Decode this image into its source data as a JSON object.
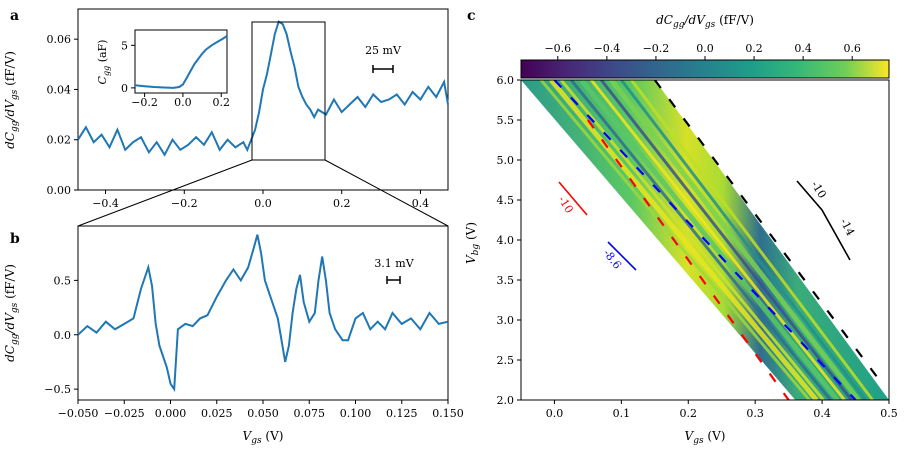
{
  "chart_data": [
    {
      "panel": "a",
      "type": "line",
      "xlabel": "",
      "ylabel": "dC_gg/dV_gs (fF/V)",
      "xlim": [
        -0.47,
        0.47
      ],
      "ylim": [
        0.0,
        0.072
      ],
      "xticks": [
        -0.4,
        -0.2,
        0.0,
        0.2,
        0.4
      ],
      "xtick_labels": [
        "−0.4",
        "−0.2",
        "0.0",
        "0.2",
        "0.4"
      ],
      "yticks": [
        0.0,
        0.02,
        0.04,
        0.06
      ],
      "ytick_labels": [
        "0.00",
        "0.02",
        "0.04",
        "0.06"
      ],
      "scale_bar_label": "25 mV",
      "line_color": "#1f77b4",
      "series": [
        {
          "x": [
            -0.47,
            -0.45,
            -0.43,
            -0.41,
            -0.39,
            -0.37,
            -0.35,
            -0.33,
            -0.31,
            -0.29,
            -0.27,
            -0.25,
            -0.23,
            -0.21,
            -0.19,
            -0.17,
            -0.15,
            -0.13,
            -0.11,
            -0.09,
            -0.07,
            -0.05,
            -0.04,
            -0.03,
            -0.02,
            -0.01,
            0.0,
            0.01,
            0.02,
            0.03,
            0.04,
            0.05,
            0.06,
            0.07,
            0.08,
            0.09,
            0.1,
            0.11,
            0.12,
            0.13,
            0.14,
            0.16,
            0.18,
            0.2,
            0.22,
            0.24,
            0.26,
            0.28,
            0.3,
            0.32,
            0.34,
            0.36,
            0.38,
            0.4,
            0.42,
            0.44,
            0.46,
            0.47
          ],
          "y": [
            0.02,
            0.025,
            0.019,
            0.022,
            0.017,
            0.024,
            0.016,
            0.019,
            0.021,
            0.015,
            0.019,
            0.014,
            0.02,
            0.016,
            0.018,
            0.021,
            0.018,
            0.023,
            0.016,
            0.02,
            0.017,
            0.019,
            0.016,
            0.02,
            0.024,
            0.031,
            0.04,
            0.046,
            0.054,
            0.062,
            0.067,
            0.066,
            0.062,
            0.055,
            0.049,
            0.041,
            0.037,
            0.034,
            0.032,
            0.029,
            0.032,
            0.03,
            0.036,
            0.031,
            0.034,
            0.037,
            0.033,
            0.038,
            0.035,
            0.036,
            0.038,
            0.034,
            0.039,
            0.036,
            0.041,
            0.037,
            0.043,
            0.034
          ]
        }
      ],
      "inset": {
        "type": "line",
        "ylabel": "C_gg (aF)",
        "xlim": [
          -0.25,
          0.23
        ],
        "ylim": [
          -0.6,
          6.8
        ],
        "xticks": [
          -0.2,
          0.0,
          0.2
        ],
        "xtick_labels": [
          "−0.2",
          "0.0",
          "0.2"
        ],
        "yticks": [
          0,
          5
        ],
        "ytick_labels": [
          "0",
          "5"
        ],
        "x": [
          -0.25,
          -0.2,
          -0.15,
          -0.1,
          -0.05,
          -0.02,
          0.0,
          0.02,
          0.04,
          0.06,
          0.08,
          0.1,
          0.12,
          0.15,
          0.18,
          0.21,
          0.23
        ],
        "y": [
          0.3,
          0.2,
          0.1,
          0.05,
          0.0,
          0.1,
          0.4,
          1.2,
          2.0,
          2.8,
          3.4,
          4.0,
          4.5,
          5.0,
          5.4,
          5.8,
          6.1
        ]
      }
    },
    {
      "panel": "b",
      "type": "line",
      "xlabel": "V_gs (V)",
      "ylabel": "dC_gg/dV_gs (fF/V)",
      "xlim": [
        -0.05,
        0.15
      ],
      "ylim": [
        -0.6,
        1.0
      ],
      "xticks": [
        -0.05,
        -0.025,
        0.0,
        0.025,
        0.05,
        0.075,
        0.1,
        0.125,
        0.15
      ],
      "xtick_labels": [
        "−0.050",
        "−0.025",
        "0.000",
        "0.025",
        "0.050",
        "0.075",
        "0.100",
        "0.125",
        "0.150"
      ],
      "yticks": [
        -0.5,
        0.0,
        0.5
      ],
      "ytick_labels": [
        "−0.5",
        "0.0",
        "0.5"
      ],
      "scale_bar_label": "3.1 mV",
      "line_color": "#1f77b4",
      "series": [
        {
          "x": [
            -0.05,
            -0.045,
            -0.04,
            -0.035,
            -0.03,
            -0.025,
            -0.02,
            -0.016,
            -0.012,
            -0.01,
            -0.008,
            -0.006,
            -0.004,
            -0.002,
            0.0,
            0.002,
            0.004,
            0.008,
            0.012,
            0.016,
            0.02,
            0.025,
            0.03,
            0.034,
            0.038,
            0.042,
            0.045,
            0.047,
            0.049,
            0.051,
            0.054,
            0.058,
            0.062,
            0.064,
            0.066,
            0.068,
            0.07,
            0.072,
            0.075,
            0.078,
            0.08,
            0.082,
            0.084,
            0.086,
            0.089,
            0.093,
            0.096,
            0.1,
            0.104,
            0.108,
            0.112,
            0.116,
            0.12,
            0.125,
            0.13,
            0.135,
            0.14,
            0.145,
            0.15
          ],
          "y": [
            0.0,
            0.08,
            0.02,
            0.12,
            0.05,
            0.1,
            0.15,
            0.42,
            0.62,
            0.45,
            0.1,
            -0.1,
            -0.2,
            -0.3,
            -0.45,
            -0.5,
            0.05,
            0.1,
            0.08,
            0.15,
            0.18,
            0.35,
            0.5,
            0.6,
            0.5,
            0.62,
            0.8,
            0.92,
            0.75,
            0.5,
            0.35,
            0.15,
            -0.25,
            -0.1,
            0.2,
            0.42,
            0.55,
            0.3,
            0.12,
            0.2,
            0.5,
            0.72,
            0.5,
            0.2,
            0.05,
            -0.05,
            -0.05,
            0.15,
            0.2,
            0.05,
            0.12,
            0.05,
            0.2,
            0.1,
            0.15,
            0.05,
            0.2,
            0.1,
            0.12
          ]
        }
      ]
    },
    {
      "panel": "c",
      "type": "heatmap",
      "title": "",
      "xlabel": "V_gs (V)",
      "ylabel": "V_bg (V)",
      "xlim": [
        -0.05,
        0.5
      ],
      "ylim": [
        2.0,
        6.0
      ],
      "xticks": [
        0.0,
        0.1,
        0.2,
        0.3,
        0.4,
        0.5
      ],
      "xtick_labels": [
        "0.0",
        "0.1",
        "0.2",
        "0.3",
        "0.4",
        "0.5"
      ],
      "yticks": [
        2.0,
        2.5,
        3.0,
        3.5,
        4.0,
        4.5,
        5.0,
        5.5,
        6.0
      ],
      "ytick_labels": [
        "2.0",
        "2.5",
        "3.0",
        "3.5",
        "4.0",
        "4.5",
        "5.0",
        "5.5",
        "6.0"
      ],
      "colorbar": {
        "label": "dC_gg/dV_gs (fF/V)",
        "range": [
          -0.75,
          0.75
        ],
        "ticks": [
          -0.6,
          -0.4,
          -0.2,
          0.0,
          0.2,
          0.4,
          0.6
        ],
        "tick_labels": [
          "−0.6",
          "−0.4",
          "−0.2",
          "0.0",
          "0.2",
          "0.4",
          "0.6"
        ],
        "colormap": "viridis"
      },
      "data_region": {
        "description_edges_vbg_vgs": [
          [
            6.0,
            -0.05,
            0.15
          ],
          [
            2.0,
            0.36,
            0.5
          ]
        ]
      },
      "dashed_lines": [
        {
          "color": "#0000ff",
          "vbg_top": 6.0,
          "vgs_top": 0.0,
          "vbg_bottom": 2.0,
          "vgs_bottom": 0.45
        },
        {
          "color": "#ff0000",
          "vbg_top": 5.5,
          "vgs_top": 0.05,
          "vbg_bottom": 2.0,
          "vgs_bottom": 0.35
        },
        {
          "color": "#000000",
          "vbg_top": 6.0,
          "vgs_top": 0.15,
          "vbg_bottom": 2.2,
          "vgs_bottom": 0.49
        }
      ],
      "slope_annotations": [
        {
          "label": "-10",
          "color": "#ff0000"
        },
        {
          "label": "-8.6",
          "color": "#0000ff"
        },
        {
          "label": "-10",
          "color": "#000000"
        },
        {
          "label": "-14",
          "color": "#000000"
        }
      ]
    }
  ],
  "panel_labels": [
    "a",
    "b",
    "c"
  ]
}
